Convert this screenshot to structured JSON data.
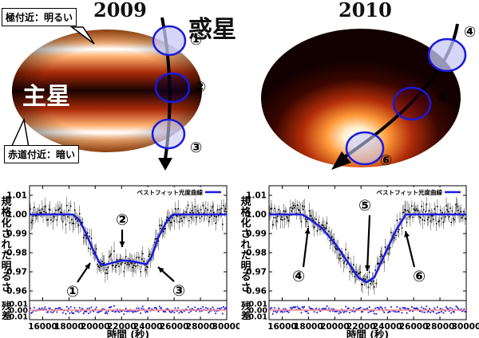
{
  "top": {
    "left": {
      "year": "2009",
      "planet_label": "惑星",
      "star_label": "主星",
      "callout_pole": "極付近：明るい",
      "callout_equator": "赤道付近：暗い",
      "markers": [
        "①",
        "②",
        "③"
      ]
    },
    "right": {
      "year": "2010",
      "markers": [
        "④",
        "⑤",
        "⑥"
      ]
    },
    "colors": {
      "circle_stroke": "#1a1adc",
      "circle_fill": "#c8c8f5",
      "star_dark": "#1a0200",
      "star_bright": "#ffffff",
      "star_mid": "#e8661a"
    }
  },
  "chart_data": [
    {
      "type": "line",
      "title": "2009",
      "xlabel": "時間 (秒)",
      "ylabel": "規格化された明るさ",
      "residual_label": "残差",
      "legend": "ベストフィット光度曲線",
      "legend_position": "top-right",
      "xlim": [
        15000,
        30000
      ],
      "ylim": [
        0.955,
        1.015
      ],
      "xticks": [
        "16000",
        "18000",
        "20000",
        "22000",
        "24000",
        "26000",
        "28000",
        "30000"
      ],
      "yticks": [
        "0.96",
        "0.97",
        "0.98",
        "0.99",
        "1.00",
        "1.01"
      ],
      "residual_ylim": [
        -0.015,
        0.015
      ],
      "residual_yticks": [
        "0.01",
        "0.00",
        "-0.01"
      ],
      "fit": {
        "x": [
          15000,
          18300,
          18800,
          19300,
          19800,
          20300,
          20600,
          21200,
          22000,
          22800,
          23500,
          23900,
          24300,
          24800,
          25400,
          25900,
          30000
        ],
        "y": [
          1.0,
          1.0,
          0.997,
          0.99,
          0.982,
          0.975,
          0.9735,
          0.9745,
          0.976,
          0.9755,
          0.9745,
          0.974,
          0.978,
          0.988,
          0.996,
          1.0,
          1.0
        ]
      },
      "annotations": [
        {
          "label": "①",
          "x": 19600,
          "y": 0.98
        },
        {
          "label": "②",
          "x": 22000,
          "y": 0.9765
        },
        {
          "label": "③",
          "x": 24200,
          "y": 0.9745
        }
      ],
      "series": [
        {
          "name": "観測データ",
          "color": "#000000"
        },
        {
          "name": "ベストフィット光度曲線",
          "color": "#1a1adc"
        }
      ],
      "residual_color": "#1a1adc",
      "zero_line_color": "#ff8888",
      "seed": 11
    },
    {
      "type": "line",
      "title": "2010",
      "xlabel": "時間 (秒)",
      "ylabel": "規格化された明るさ",
      "residual_label": "残差",
      "legend": "ベストフィット光度曲線",
      "legend_position": "top-right",
      "xlim": [
        15000,
        30000
      ],
      "ylim": [
        0.955,
        1.015
      ],
      "xticks": [
        "16000",
        "18000",
        "20000",
        "22000",
        "24000",
        "26000",
        "28000",
        "30000"
      ],
      "yticks": [
        "0.96",
        "0.97",
        "0.98",
        "0.99",
        "1.00",
        "1.01"
      ],
      "residual_ylim": [
        -0.015,
        0.015
      ],
      "residual_yticks": [
        "0.01",
        "0.00",
        "-0.01"
      ],
      "fit": {
        "x": [
          15000,
          17500,
          18000,
          19000,
          20000,
          21000,
          21800,
          22400,
          23000,
          23800,
          24600,
          25400,
          30000
        ],
        "y": [
          1.0,
          1.0,
          0.998,
          0.993,
          0.985,
          0.975,
          0.967,
          0.9645,
          0.967,
          0.979,
          0.991,
          1.0,
          1.0
        ]
      },
      "annotations": [
        {
          "label": "④",
          "x": 17900,
          "y": 0.9985
        },
        {
          "label": "⑤",
          "x": 22300,
          "y": 0.966
        },
        {
          "label": "⑥",
          "x": 25300,
          "y": 0.9975
        }
      ],
      "series": [
        {
          "name": "観測データ",
          "color": "#000000"
        },
        {
          "name": "ベストフィット光度曲線",
          "color": "#1a1adc"
        }
      ],
      "residual_color": "#1a1adc",
      "zero_line_color": "#ff8888",
      "seed": 29
    }
  ]
}
